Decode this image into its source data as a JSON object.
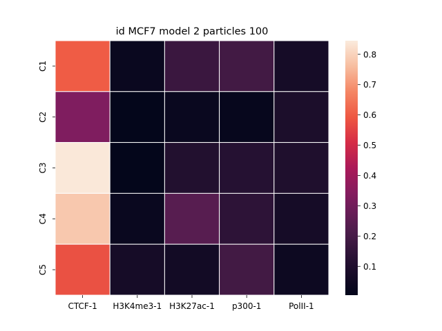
{
  "chart_data": {
    "type": "heatmap",
    "title": "id MCF7 model 2 particles 100",
    "columns": [
      "CTCF-1",
      "H3K4me3-1",
      "H3K27ac-1",
      "p300-1",
      "PolII-1"
    ],
    "rows": [
      "C1",
      "C2",
      "C3",
      "C4",
      "C5"
    ],
    "values": [
      [
        0.6,
        0.03,
        0.17,
        0.19,
        0.07
      ],
      [
        0.33,
        0.01,
        0.03,
        0.02,
        0.09
      ],
      [
        0.84,
        0.01,
        0.11,
        0.12,
        0.1
      ],
      [
        0.78,
        0.03,
        0.24,
        0.14,
        0.07
      ],
      [
        0.58,
        0.07,
        0.06,
        0.19,
        0.04
      ]
    ],
    "colorbar": {
      "ticks": [
        "0.1",
        "0.2",
        "0.3",
        "0.4",
        "0.5",
        "0.6",
        "0.7",
        "0.8"
      ],
      "tick_values": [
        0.1,
        0.2,
        0.3,
        0.4,
        0.5,
        0.6,
        0.7,
        0.8
      ],
      "range": [
        0.005,
        0.845
      ],
      "colormap": "rocket"
    },
    "cell_border_color": "#ffffff"
  }
}
